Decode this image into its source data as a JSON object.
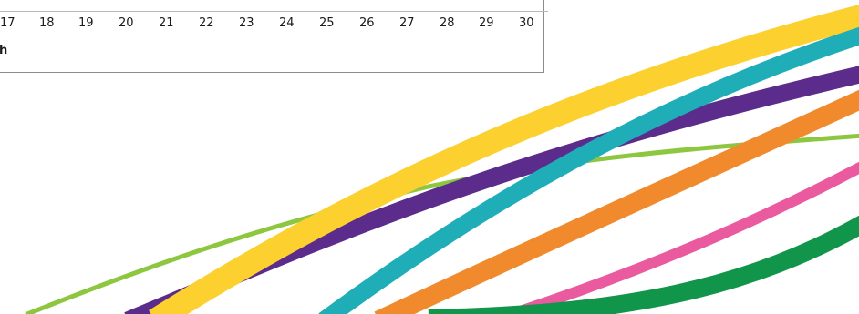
{
  "calendar": {
    "days": [
      "17",
      "18",
      "19",
      "20",
      "21",
      "22",
      "23",
      "24",
      "25",
      "26",
      "27",
      "28",
      "29",
      "30"
    ],
    "row_label": "h"
  },
  "decoration": {
    "ribbon_colors": {
      "green_thin": "#8dc63f",
      "purple": "#5b2c8c",
      "yellow": "#fcd02f",
      "teal": "#1fadb8",
      "orange": "#f18a2d",
      "pink": "#ea5a9e",
      "green_dark": "#11954a"
    }
  }
}
